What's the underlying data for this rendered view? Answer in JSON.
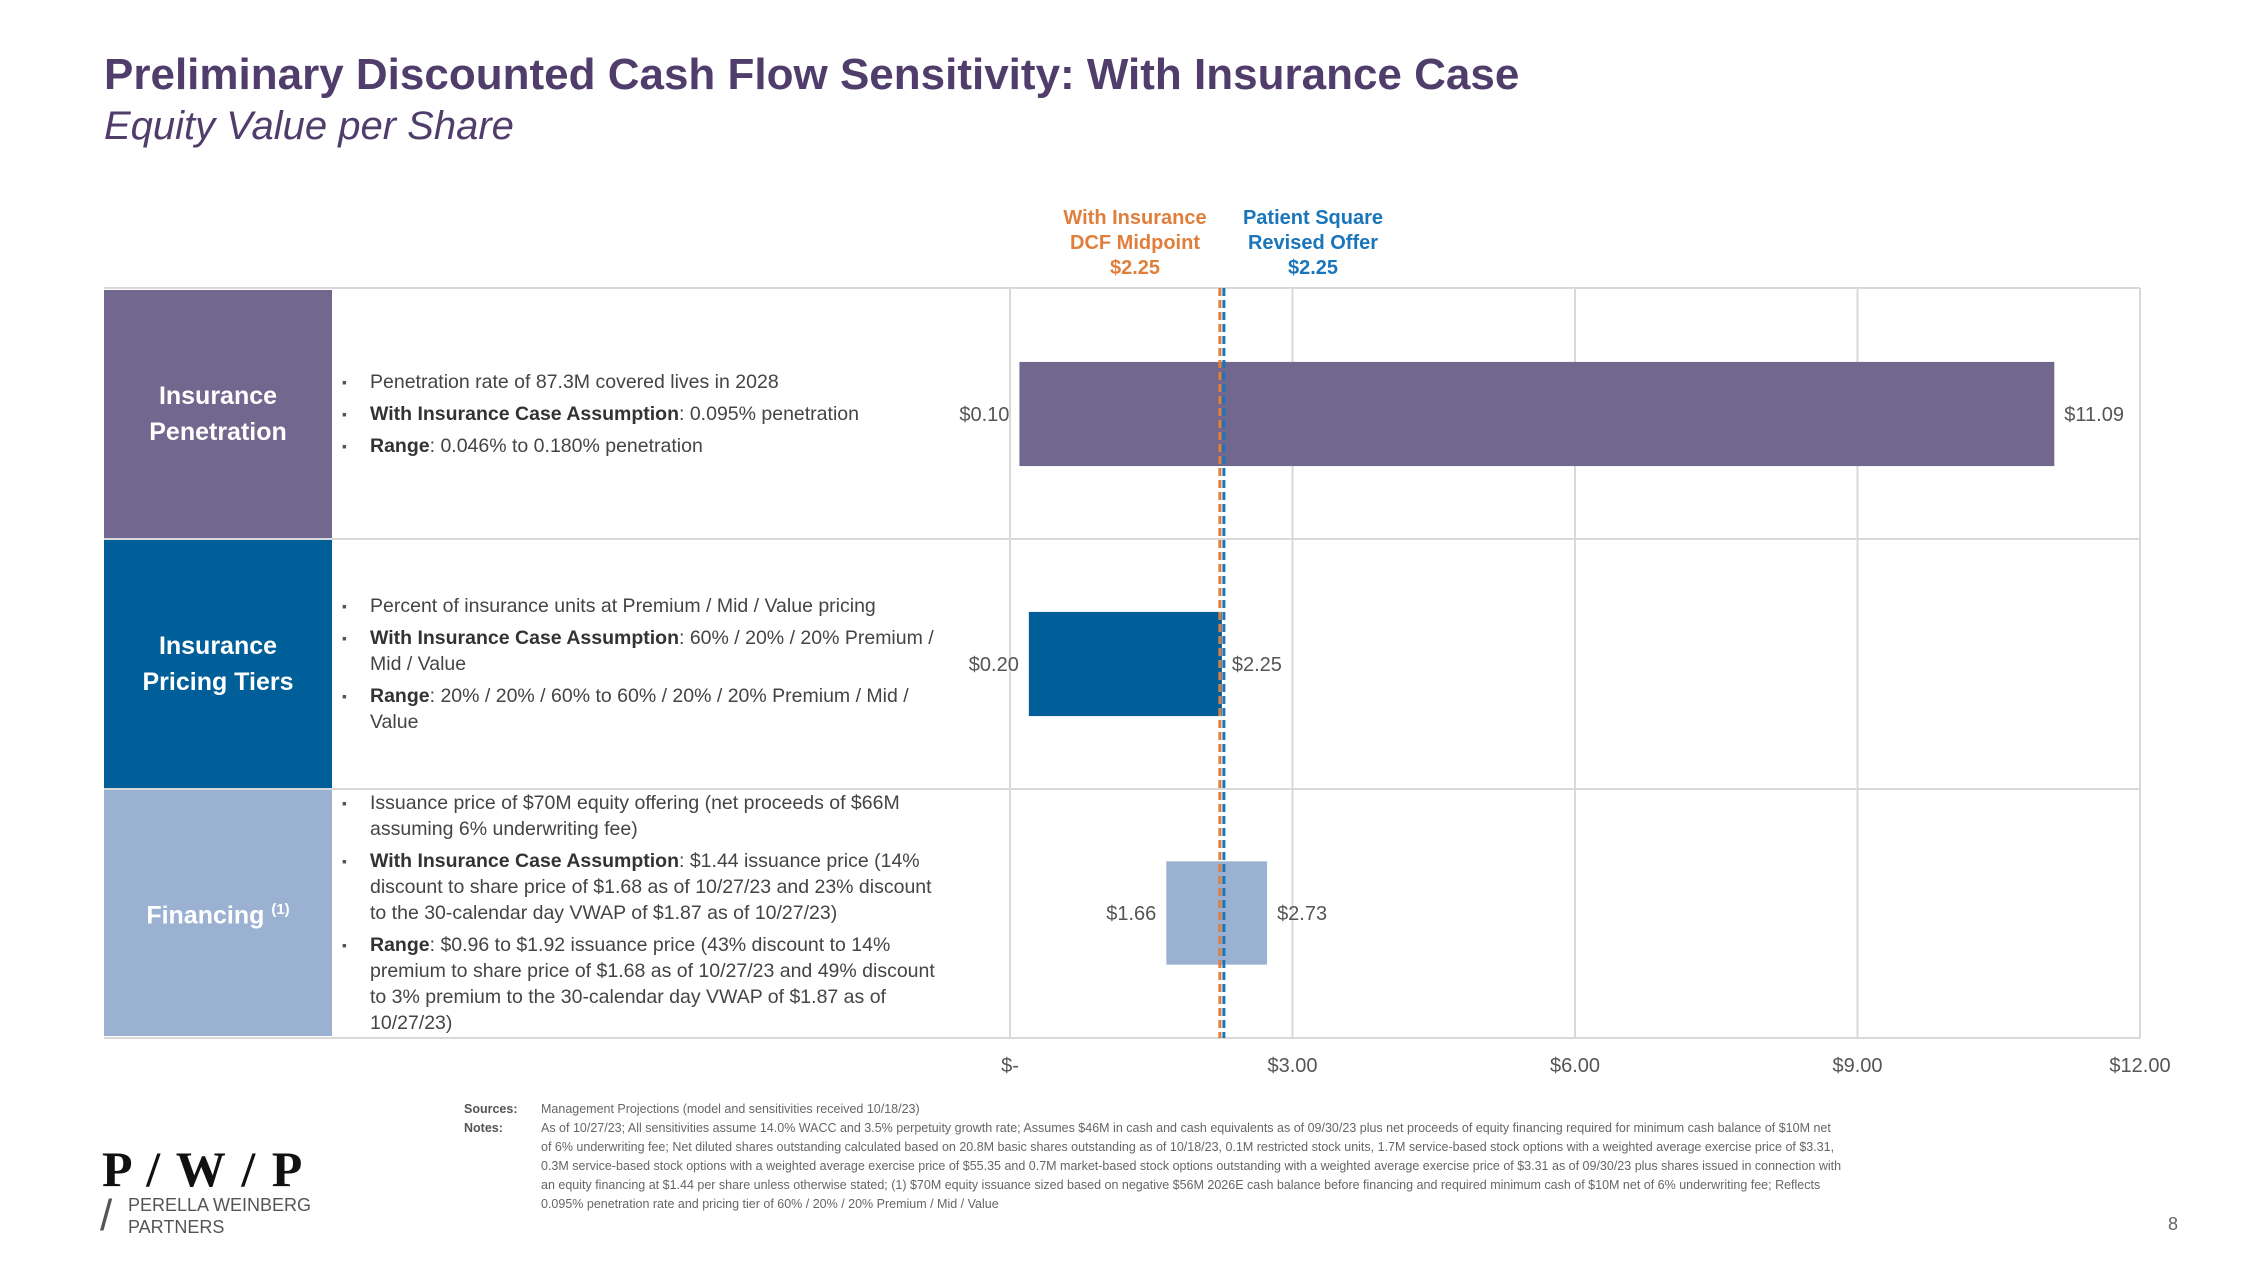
{
  "slide": {
    "title": "Preliminary Discounted Cash Flow Sensitivity: With Insurance Case",
    "subtitle": "Equity Value per Share",
    "page_number": "8"
  },
  "reference_lines": {
    "dcf": {
      "line1": "With Insurance",
      "line2": "DCF Midpoint",
      "line3": "$2.25",
      "value": 2.25,
      "color": "#e07f3c"
    },
    "offer": {
      "line1": "Patient Square",
      "line2": "Revised Offer",
      "line3": "$2.25",
      "value": 2.25,
      "color": "#1a75bb"
    }
  },
  "rows": [
    {
      "label_line1": "Insurance",
      "label_line2": "Penetration",
      "label_sup": "",
      "color": "#72688f",
      "b1": "Penetration rate of 87.3M covered lives in 2028",
      "b2_bold": "With Insurance Case Assumption",
      "b2": ": 0.095% penetration",
      "b3_bold": "Range",
      "b3": ": 0.046% to 0.180% penetration"
    },
    {
      "label_line1": "Insurance",
      "label_line2": "Pricing Tiers",
      "label_sup": "",
      "color": "#005f99",
      "b1": "Percent of insurance units at Premium / Mid / Value pricing",
      "b2_bold": "With Insurance Case Assumption",
      "b2": ": 60% / 20% / 20% Premium / Mid / Value",
      "b3_bold": "Range",
      "b3": ": 20% / 20% / 60% to 60% / 20% / 20% Premium / Mid / Value"
    },
    {
      "label_line1": "Financing",
      "label_line2": "",
      "label_sup": "(1)",
      "color": "#9ab1d1",
      "b1": "Issuance price of $70M equity offering (net proceeds of $66M assuming 6% underwriting fee)",
      "b2_bold": "With Insurance Case Assumption",
      "b2": ": $1.44 issuance price (14% discount to share price of $1.68 as of 10/27/23 and 23% discount to the 30-calendar day VWAP of $1.87 as of 10/27/23)",
      "b3_bold": "Range",
      "b3": ": $0.96 to $1.92 issuance price (43% discount to 14% premium to share price of $1.68 as of 10/27/23 and 49% discount to 3% premium to the 30-calendar day VWAP of $1.87 as of 10/27/23)"
    }
  ],
  "chart_data": {
    "type": "bar",
    "orientation": "horizontal-floating",
    "categories": [
      "Insurance Penetration",
      "Insurance Pricing Tiers",
      "Financing"
    ],
    "low": [
      0.1,
      0.2,
      1.66
    ],
    "high": [
      11.09,
      2.25,
      2.73
    ],
    "low_labels": [
      "$0.10",
      "$0.20",
      "$1.66"
    ],
    "high_labels": [
      "$11.09",
      "$2.25",
      "$2.73"
    ],
    "colors": [
      "#72688f",
      "#005f99",
      "#9ab1d1"
    ],
    "xlim": [
      0,
      12
    ],
    "xticks": [
      0,
      3,
      6,
      9,
      12
    ],
    "xtick_labels": [
      "$-",
      "$3.00",
      "$6.00",
      "$9.00",
      "$12.00"
    ],
    "grid": true
  },
  "footnotes": {
    "sources_label": "Sources:",
    "sources": "Management Projections (model and sensitivities received 10/18/23)",
    "notes_label": "Notes:",
    "notes": "As of 10/27/23; All sensitivities assume 14.0% WACC and 3.5% perpetuity growth rate; Assumes $46M in cash and cash equivalents as of 09/30/23 plus net proceeds of equity financing required for minimum cash balance of $10M net of 6% underwriting fee; Net diluted shares outstanding calculated based on 20.8M basic shares outstanding as of 10/18/23, 0.1M restricted stock units, 1.7M service-based stock options with a weighted average exercise price of $3.31, 0.3M service-based stock options with a weighted average exercise price of $55.35 and 0.7M market-based stock options outstanding with a weighted average exercise price of $3.31 as of 09/30/23 plus shares issued in connection with an equity financing at $1.44 per share unless otherwise stated; (1) $70M equity issuance sized based on negative $56M 2026E cash balance before financing and required minimum cash of $10M net of 6% underwriting fee; Reflects 0.095% penetration rate and pricing tier of 60% / 20% / 20% Premium / Mid / Value"
  },
  "logo": {
    "mark": "P / W / P",
    "line1": "PERELLA WEINBERG",
    "line2": "PARTNERS"
  }
}
